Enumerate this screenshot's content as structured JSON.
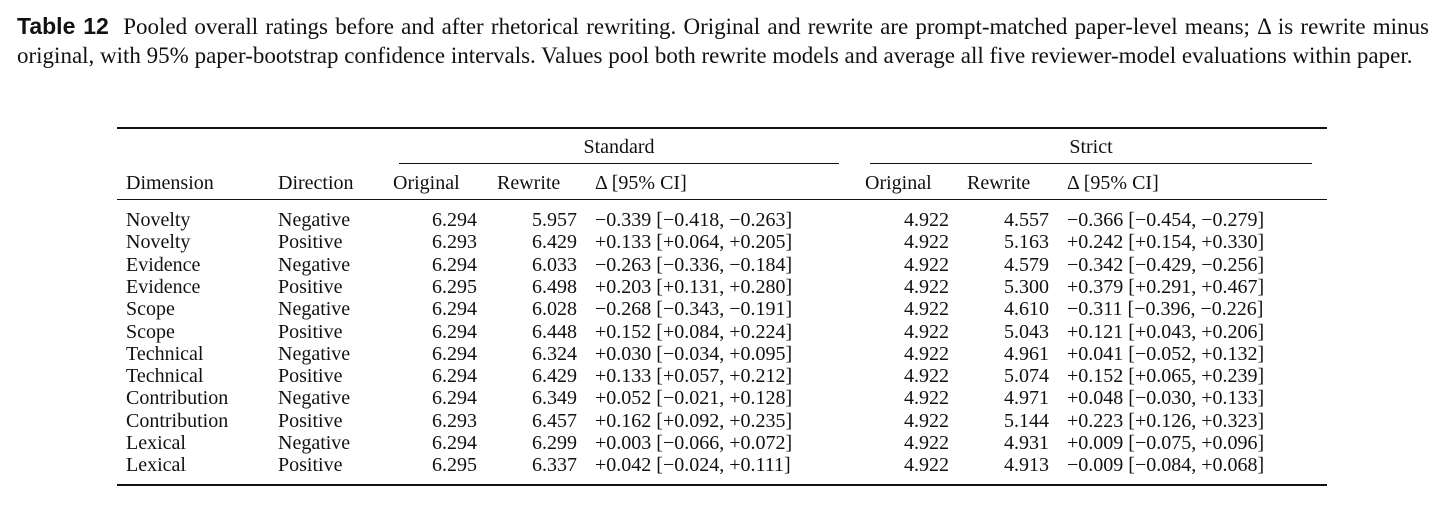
{
  "caption": {
    "label": "Table 12",
    "text": "Pooled overall ratings before and after rhetorical rewriting. Original and rewrite are prompt-matched paper-level means; Δ is rewrite minus original, with 95% paper-bootstrap confidence intervals. Values pool both rewrite models and average all five reviewer-model evaluations within paper."
  },
  "table": {
    "groups": [
      "Standard",
      "Strict"
    ],
    "headers": {
      "dimension": "Dimension",
      "direction": "Direction",
      "std_original": "Original",
      "std_rewrite": "Rewrite",
      "std_delta": "Δ [95% CI]",
      "str_original": "Original",
      "str_rewrite": "Rewrite",
      "str_delta": "Δ [95% CI]"
    },
    "rows": [
      {
        "dimension": "Novelty",
        "direction": "Negative",
        "std_original": "6.294",
        "std_rewrite": "5.957",
        "std_delta": "−0.339 [−0.418, −0.263]",
        "str_original": "4.922",
        "str_rewrite": "4.557",
        "str_delta": "−0.366 [−0.454, −0.279]"
      },
      {
        "dimension": "Novelty",
        "direction": "Positive",
        "std_original": "6.293",
        "std_rewrite": "6.429",
        "std_delta": "+0.133 [+0.064, +0.205]",
        "str_original": "4.922",
        "str_rewrite": "5.163",
        "str_delta": "+0.242 [+0.154, +0.330]"
      },
      {
        "dimension": "Evidence",
        "direction": "Negative",
        "std_original": "6.294",
        "std_rewrite": "6.033",
        "std_delta": "−0.263 [−0.336, −0.184]",
        "str_original": "4.922",
        "str_rewrite": "4.579",
        "str_delta": "−0.342 [−0.429, −0.256]"
      },
      {
        "dimension": "Evidence",
        "direction": "Positive",
        "std_original": "6.295",
        "std_rewrite": "6.498",
        "std_delta": "+0.203 [+0.131, +0.280]",
        "str_original": "4.922",
        "str_rewrite": "5.300",
        "str_delta": "+0.379 [+0.291, +0.467]"
      },
      {
        "dimension": "Scope",
        "direction": "Negative",
        "std_original": "6.294",
        "std_rewrite": "6.028",
        "std_delta": "−0.268 [−0.343, −0.191]",
        "str_original": "4.922",
        "str_rewrite": "4.610",
        "str_delta": "−0.311 [−0.396, −0.226]"
      },
      {
        "dimension": "Scope",
        "direction": "Positive",
        "std_original": "6.294",
        "std_rewrite": "6.448",
        "std_delta": "+0.152 [+0.084, +0.224]",
        "str_original": "4.922",
        "str_rewrite": "5.043",
        "str_delta": "+0.121 [+0.043, +0.206]"
      },
      {
        "dimension": "Technical",
        "direction": "Negative",
        "std_original": "6.294",
        "std_rewrite": "6.324",
        "std_delta": "+0.030 [−0.034, +0.095]",
        "str_original": "4.922",
        "str_rewrite": "4.961",
        "str_delta": "+0.041 [−0.052, +0.132]"
      },
      {
        "dimension": "Technical",
        "direction": "Positive",
        "std_original": "6.294",
        "std_rewrite": "6.429",
        "std_delta": "+0.133 [+0.057, +0.212]",
        "str_original": "4.922",
        "str_rewrite": "5.074",
        "str_delta": "+0.152 [+0.065, +0.239]"
      },
      {
        "dimension": "Contribution",
        "direction": "Negative",
        "std_original": "6.294",
        "std_rewrite": "6.349",
        "std_delta": "+0.052 [−0.021, +0.128]",
        "str_original": "4.922",
        "str_rewrite": "4.971",
        "str_delta": "+0.048 [−0.030, +0.133]"
      },
      {
        "dimension": "Contribution",
        "direction": "Positive",
        "std_original": "6.293",
        "std_rewrite": "6.457",
        "std_delta": "+0.162 [+0.092, +0.235]",
        "str_original": "4.922",
        "str_rewrite": "5.144",
        "str_delta": "+0.223 [+0.126, +0.323]"
      },
      {
        "dimension": "Lexical",
        "direction": "Negative",
        "std_original": "6.294",
        "std_rewrite": "6.299",
        "std_delta": "+0.003 [−0.066, +0.072]",
        "str_original": "4.922",
        "str_rewrite": "4.931",
        "str_delta": "+0.009 [−0.075, +0.096]"
      },
      {
        "dimension": "Lexical",
        "direction": "Positive",
        "std_original": "6.295",
        "std_rewrite": "6.337",
        "std_delta": "+0.042 [−0.024, +0.111]",
        "str_original": "4.922",
        "str_rewrite": "4.913",
        "str_delta": "−0.009 [−0.084, +0.068]"
      }
    ]
  }
}
